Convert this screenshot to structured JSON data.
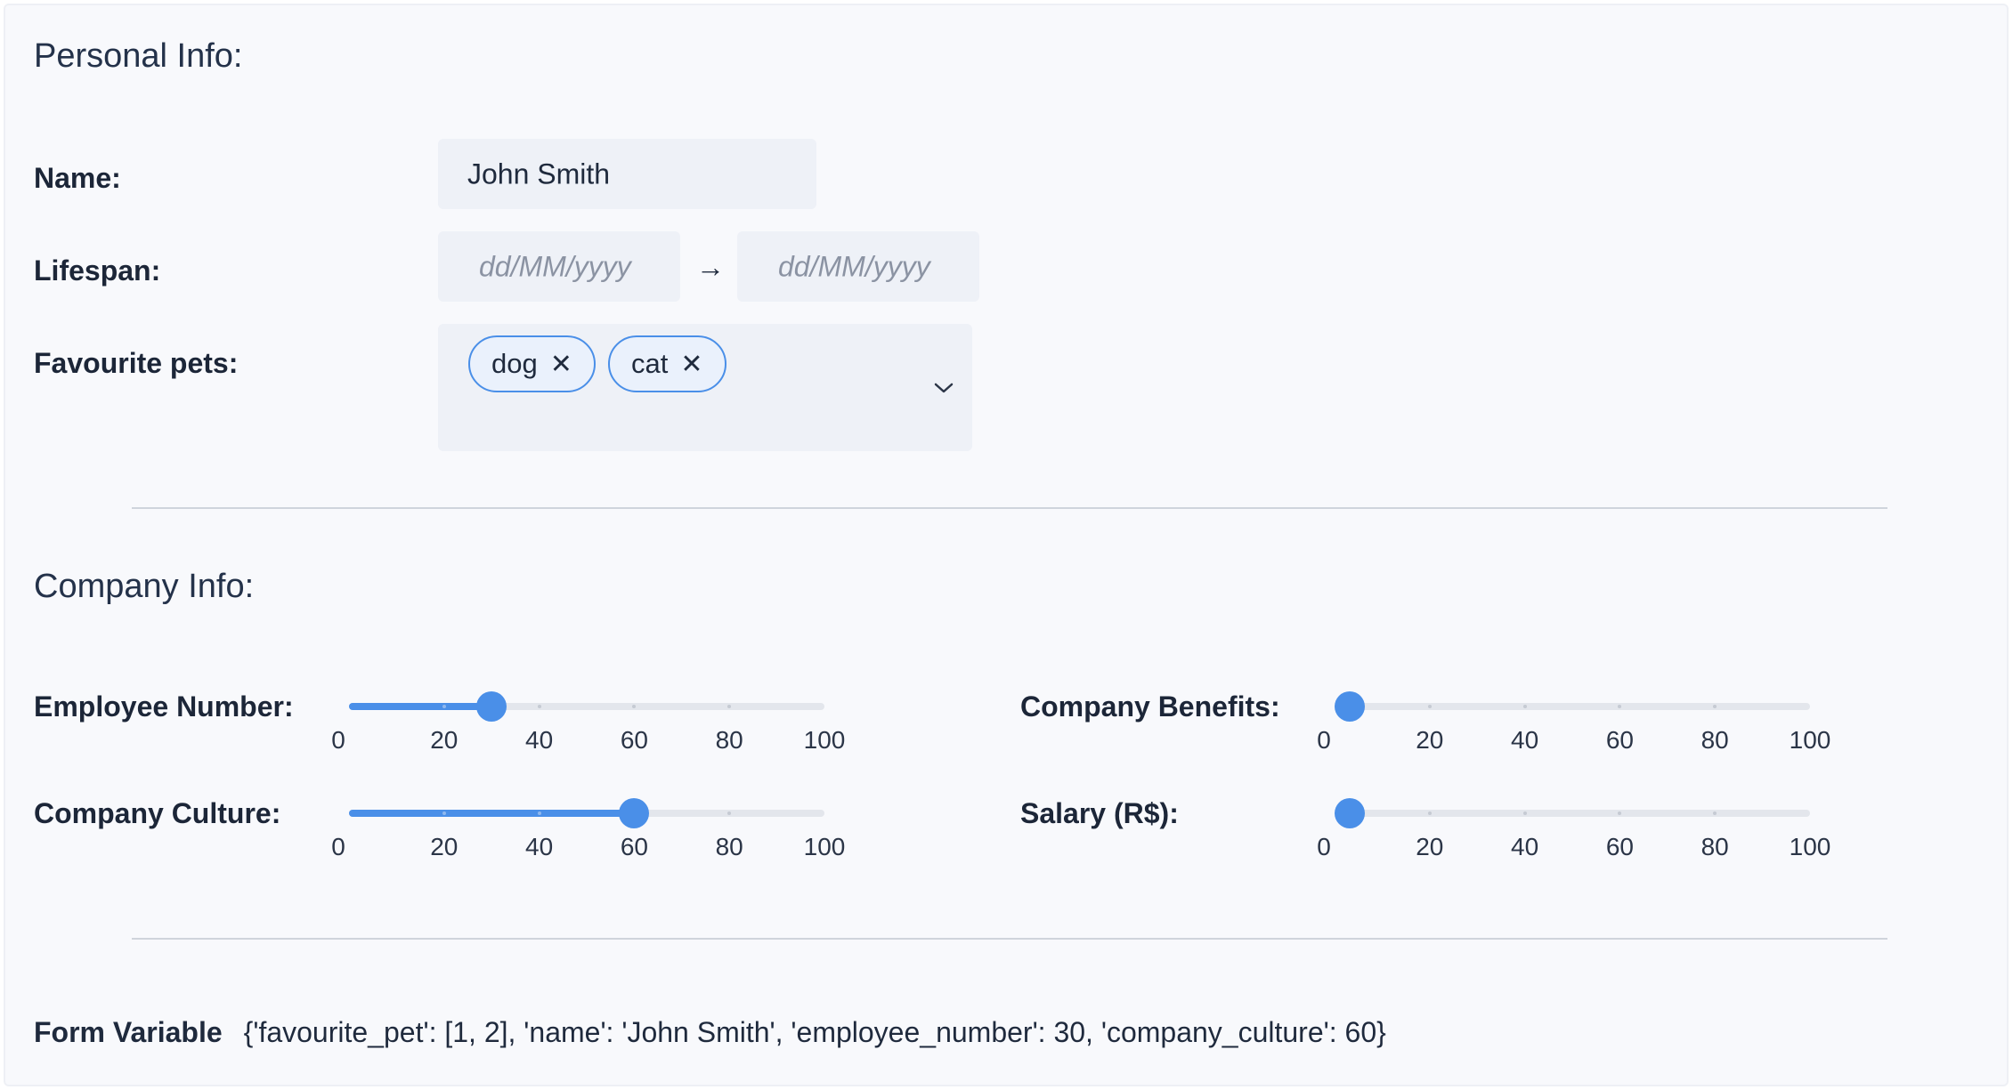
{
  "personal": {
    "title": "Personal Info:",
    "name_label": "Name:",
    "name_value": "John Smith",
    "lifespan_label": "Lifespan:",
    "lifespan_start_placeholder": "dd/MM/yyyy",
    "lifespan_arrow": "→",
    "lifespan_end_placeholder": "dd/MM/yyyy",
    "pets_label": "Favourite pets:",
    "pets": [
      "dog",
      "cat"
    ],
    "remove_symbol": "✕"
  },
  "company": {
    "title": "Company Info:",
    "scale": [
      "0",
      "20",
      "40",
      "60",
      "80",
      "100"
    ],
    "sliders": {
      "employee_number": {
        "label": "Employee Number:",
        "value": 30
      },
      "company_culture": {
        "label": "Company Culture:",
        "value": 60
      },
      "company_benefits": {
        "label": "Company Benefits:",
        "value": 0
      },
      "salary": {
        "label": "Salary (R$):",
        "value": 0
      }
    }
  },
  "form_variable": {
    "label": "Form Variable",
    "value": "{'favourite_pet': [1, 2], 'name': 'John Smith', 'employee_number': 30, 'company_culture': 60}"
  },
  "colors": {
    "accent": "#4a8fe8",
    "track": "#e3e6ec",
    "field_bg": "#eef1f7"
  }
}
